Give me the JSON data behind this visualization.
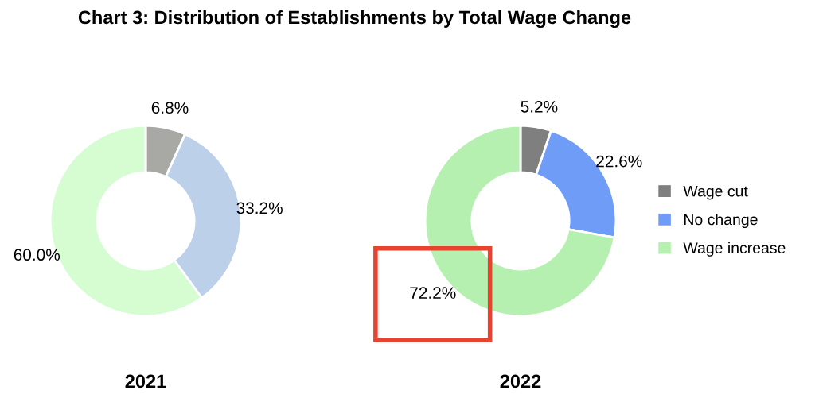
{
  "chart_data": [
    {
      "type": "donut",
      "title": "Chart 3: Distribution of Establishments by Total Wage Change",
      "xlabel": "2021",
      "categories": [
        null,
        null,
        null
      ],
      "values": [
        6.8,
        33.2,
        60.0
      ],
      "colors": [
        "#a8a8a4",
        "#bcd0ea",
        "#d6fcd2"
      ],
      "value_labels": [
        "6.8%",
        "33.2%",
        "60.0%"
      ],
      "legend": false
    },
    {
      "type": "donut",
      "xlabel": "2022",
      "categories": [
        "Wage cut",
        "No change",
        "Wage increase"
      ],
      "values": [
        5.2,
        22.6,
        72.2
      ],
      "colors": [
        "#7f7f7f",
        "#6f9cf7",
        "#b5f0b0"
      ],
      "value_labels": [
        "5.2%",
        "22.6%",
        "72.2%"
      ],
      "legend": "right"
    }
  ]
}
